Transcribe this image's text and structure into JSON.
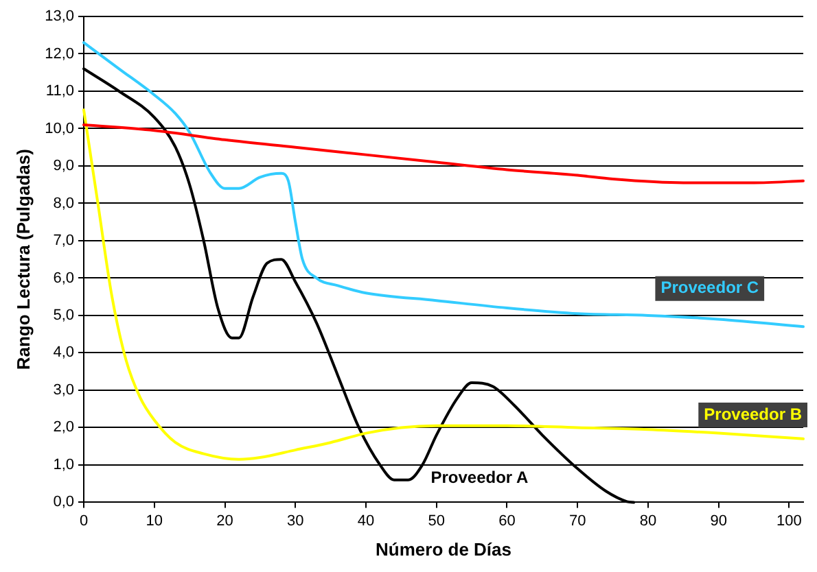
{
  "chart_data": {
    "type": "line",
    "xlabel": "Número de Días",
    "ylabel": "Rango Lectura (Pulgadas)",
    "xlim": [
      0,
      102
    ],
    "xticks": [
      0,
      10,
      20,
      30,
      40,
      50,
      60,
      70,
      80,
      90,
      100
    ],
    "ylim": [
      0,
      13
    ],
    "yticks": [
      {
        "value": 0,
        "label": "0,0"
      },
      {
        "value": 1,
        "label": "1,0"
      },
      {
        "value": 2,
        "label": "2,0"
      },
      {
        "value": 3,
        "label": "3,0"
      },
      {
        "value": 4,
        "label": "4,0"
      },
      {
        "value": 5,
        "label": "5,0"
      },
      {
        "value": 6,
        "label": "6,0"
      },
      {
        "value": 7,
        "label": "7,0"
      },
      {
        "value": 8,
        "label": "8,0"
      },
      {
        "value": 9,
        "label": "9,0"
      },
      {
        "value": 10,
        "label": "10,0"
      },
      {
        "value": 11,
        "label": "11,0"
      },
      {
        "value": 12,
        "label": "12,0"
      },
      {
        "value": 13,
        "label": "13,0"
      }
    ],
    "grid": "y",
    "legend": false,
    "marker": "none",
    "line_style": "solid",
    "series": [
      {
        "color": "#ff0000",
        "x": [
          0,
          10,
          20,
          30,
          40,
          50,
          60,
          70,
          75,
          85,
          95,
          102
        ],
        "values": [
          10.1,
          9.95,
          9.7,
          9.5,
          9.3,
          9.1,
          8.9,
          8.75,
          8.65,
          8.55,
          8.55,
          8.6
        ]
      },
      {
        "name": "Proveedor C",
        "color": "#33ccff",
        "x": [
          0,
          5,
          10,
          13,
          15,
          18,
          20,
          22,
          25,
          28,
          29,
          30,
          31,
          33,
          36,
          40,
          50,
          60,
          70,
          80,
          90,
          102
        ],
        "values": [
          12.3,
          11.6,
          10.9,
          10.4,
          9.9,
          8.8,
          8.4,
          8.4,
          8.7,
          8.8,
          8.6,
          7.5,
          6.5,
          6.0,
          5.8,
          5.6,
          5.4,
          5.2,
          5.05,
          5.0,
          4.9,
          4.7
        ]
      },
      {
        "name": "Proveedor B",
        "color": "#ffff00",
        "x": [
          0,
          2,
          4,
          6,
          8,
          10,
          13,
          17,
          22,
          25,
          30,
          35,
          40,
          45,
          50,
          60,
          70,
          80,
          90,
          102
        ],
        "values": [
          10.5,
          8,
          5.5,
          3.8,
          2.8,
          2.2,
          1.6,
          1.3,
          1.15,
          1.2,
          1.4,
          1.6,
          1.85,
          2.0,
          2.05,
          2.05,
          2.0,
          1.95,
          1.85,
          1.7
        ]
      },
      {
        "name": "Proveedor A",
        "color": "#000000",
        "x": [
          0,
          5,
          10,
          13,
          15,
          17,
          19,
          21,
          22,
          24,
          26,
          28,
          30,
          33,
          36,
          39,
          42,
          44,
          46,
          48,
          50,
          53,
          55,
          58,
          61,
          65,
          70,
          74,
          77,
          78
        ],
        "values": [
          11.6,
          11.0,
          10.3,
          9.5,
          8.5,
          7,
          5.2,
          4.4,
          4.4,
          5.5,
          6.4,
          6.5,
          5.9,
          4.8,
          3.4,
          2.0,
          1.0,
          0.6,
          0.6,
          1.0,
          1.8,
          2.8,
          3.2,
          3.1,
          2.6,
          1.8,
          0.9,
          0.3,
          0.02,
          0
        ]
      }
    ]
  }
}
